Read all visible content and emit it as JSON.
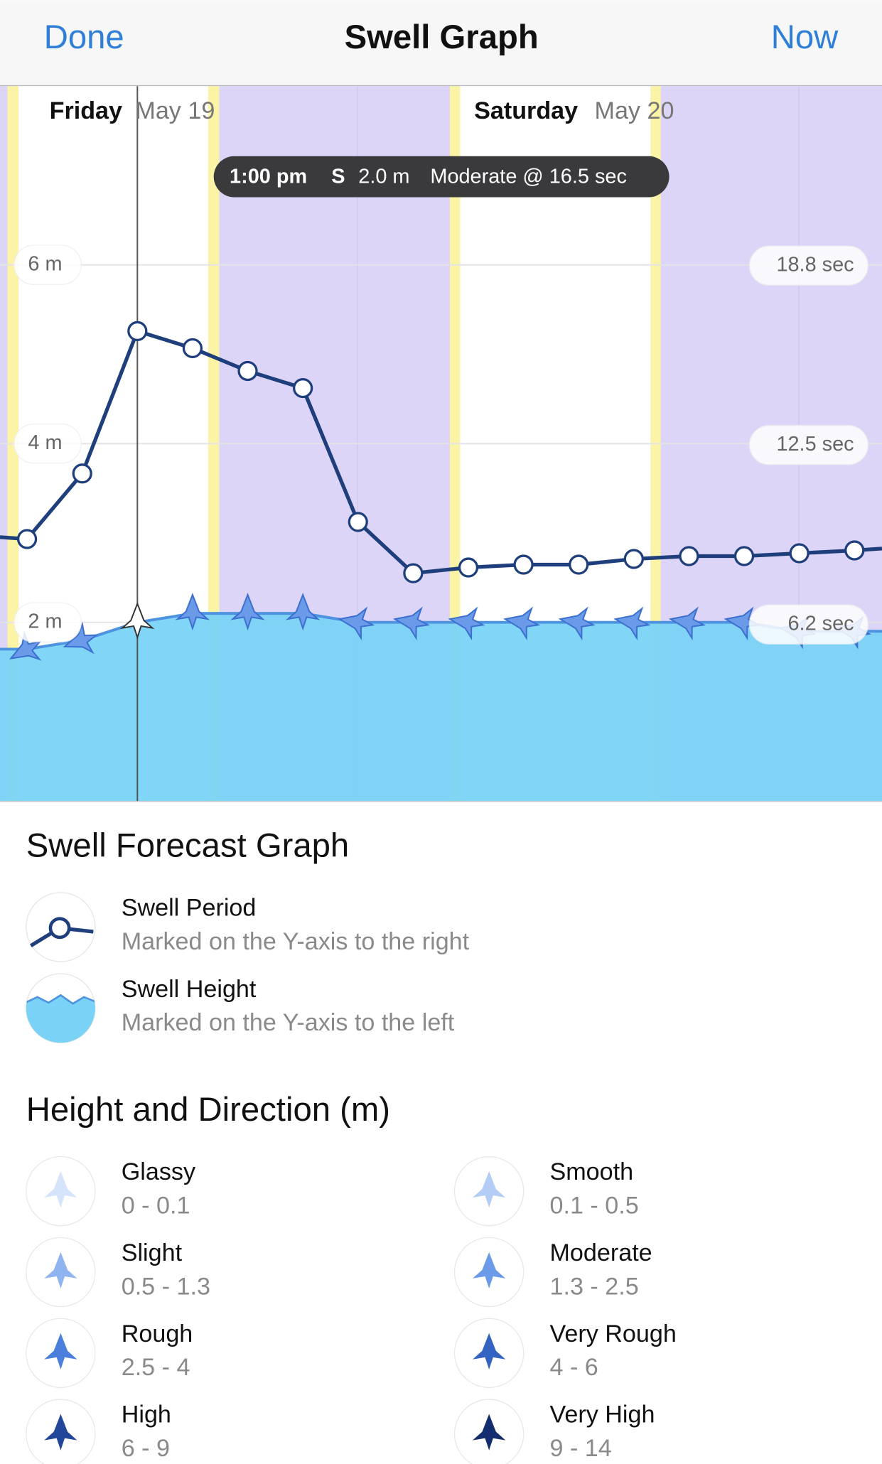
{
  "header": {
    "left_button": "Done",
    "title": "Swell Graph",
    "right_button": "Now"
  },
  "chart_data": {
    "type": "line",
    "days": [
      {
        "name": "Friday",
        "date": "May 19"
      },
      {
        "name": "Saturday",
        "date": "May 20"
      }
    ],
    "tooltip": {
      "time": "1:00 pm",
      "direction": "S",
      "height": "2.0 m",
      "description": "Moderate @ 16.5 sec"
    },
    "selected_index": 2,
    "ylim": [
      0,
      8
    ],
    "yticks": [
      {
        "value": 2,
        "label": "2 m"
      },
      {
        "value": 4,
        "label": "4 m"
      },
      {
        "value": 6,
        "label": "6 m"
      }
    ],
    "y2lim": [
      0,
      25.1
    ],
    "y2ticks": [
      {
        "value": 6.2,
        "label": "6.2 sec"
      },
      {
        "value": 12.5,
        "label": "12.5 sec"
      },
      {
        "value": 18.8,
        "label": "18.8 sec"
      }
    ],
    "series": [
      {
        "name": "Swell Period",
        "description": "Marked on the Y-axis to the right",
        "axis": "y2",
        "color": "#1f3f7c",
        "values": [
          9.2,
          11.5,
          16.5,
          15.9,
          15.1,
          14.5,
          9.8,
          8.0,
          8.2,
          8.3,
          8.3,
          8.5,
          8.6,
          8.6,
          8.7,
          8.8
        ]
      },
      {
        "name": "Swell Height",
        "description": "Marked on the Y-axis to the left",
        "color": "#7ad3f6",
        "values": [
          1.7,
          1.8,
          2.0,
          2.1,
          2.1,
          2.1,
          2.0,
          2.0,
          2.0,
          2.0,
          2.0,
          2.0,
          2.0,
          2.0,
          1.9,
          1.9
        ],
        "directions": [
          240,
          250,
          0,
          0,
          0,
          0,
          280,
          280,
          280,
          280,
          280,
          280,
          280,
          280,
          280,
          280
        ]
      }
    ]
  },
  "legend": {
    "title": "Swell Forecast Graph"
  },
  "scale": {
    "title": "Height and Direction (m)",
    "levels": [
      {
        "name": "Glassy",
        "range": "0 - 0.1",
        "color": "#d6e4fb"
      },
      {
        "name": "Smooth",
        "range": "0.1 - 0.5",
        "color": "#b3cdf6"
      },
      {
        "name": "Slight",
        "range": "0.5 - 1.3",
        "color": "#8fb4ef"
      },
      {
        "name": "Moderate",
        "range": "1.3 - 2.5",
        "color": "#6b9be8"
      },
      {
        "name": "Rough",
        "range": "2.5 - 4",
        "color": "#4a7fdc"
      },
      {
        "name": "Very Rough",
        "range": "4 - 6",
        "color": "#3462c0"
      },
      {
        "name": "High",
        "range": "6 - 9",
        "color": "#22469a"
      },
      {
        "name": "Very High",
        "range": "9 - 14",
        "color": "#142d6e"
      }
    ]
  }
}
